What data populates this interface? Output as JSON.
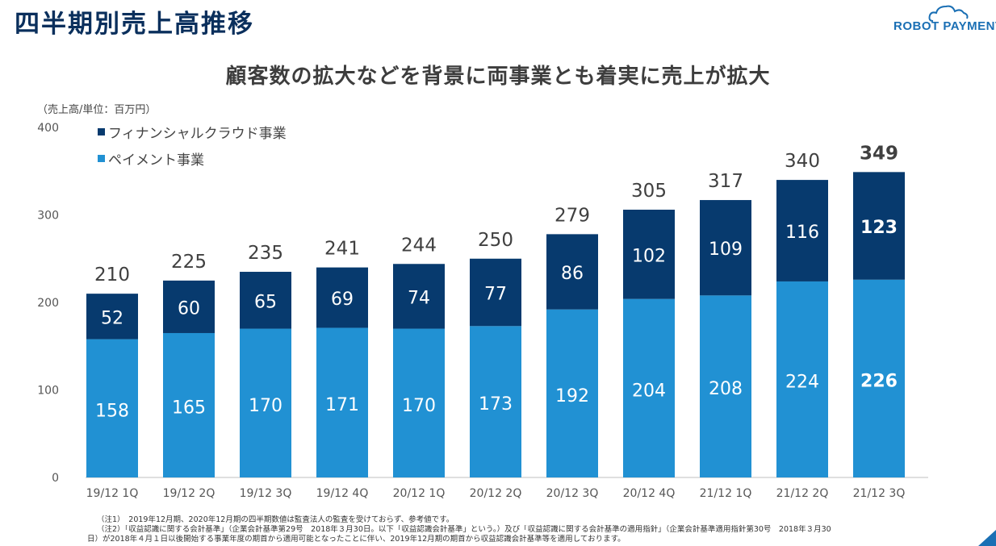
{
  "header": {
    "title": "四半期別売上高推移",
    "logo_text": "ROBOT PAYMENT",
    "subtitle": "顧客数の拡大などを背景に両事業とも着実に売上が拡大"
  },
  "colors": {
    "title": "#0a2f5c",
    "fincloud": "#073a6e",
    "payment": "#2191d3",
    "logo": "#1a6fb4"
  },
  "chart_data": {
    "type": "bar",
    "stacked": true,
    "unit_label": "（売上高/単位：百万円）",
    "categories": [
      "19/12 1Q",
      "19/12 2Q",
      "19/12 3Q",
      "19/12 4Q",
      "20/12 1Q",
      "20/12 2Q",
      "20/12 3Q",
      "20/12 4Q",
      "21/12 1Q",
      "21/12 2Q",
      "21/12 3Q"
    ],
    "series": [
      {
        "name": "ペイメント事業",
        "color": "#2191d3",
        "values": [
          158,
          165,
          170,
          171,
          170,
          173,
          192,
          204,
          208,
          224,
          226
        ]
      },
      {
        "name": "フィナンシャルクラウド事業",
        "color": "#073a6e",
        "values": [
          52,
          60,
          65,
          69,
          74,
          77,
          86,
          102,
          109,
          116,
          123
        ]
      }
    ],
    "totals": [
      210,
      225,
      235,
      241,
      244,
      250,
      279,
      305,
      317,
      340,
      349
    ],
    "emphasized_category": "21/12 3Q",
    "ylim": [
      0,
      400
    ],
    "yticks": [
      0,
      100,
      200,
      300,
      400
    ],
    "legend_placement": "top-left",
    "grid": false
  },
  "notes": [
    "（注1）　2019年12月期、2020年12月期の四半期数値は監査法人の監査を受けておらず、参考値です。",
    "（注2）「収益認識に関する会計基準」（企業会計基準第29号　2018年３月30日。以下「収益認識会計基準」という。）及び「収益認識に関する会計基準の適用指針」（企業会計基準適用指針第30号　2018年３月30",
    "日）が2018年４月１日以後開始する事業年度の期首から適用可能となったことに伴い、2019年12月期の期首から収益認識会計基準等を適用しております。"
  ]
}
